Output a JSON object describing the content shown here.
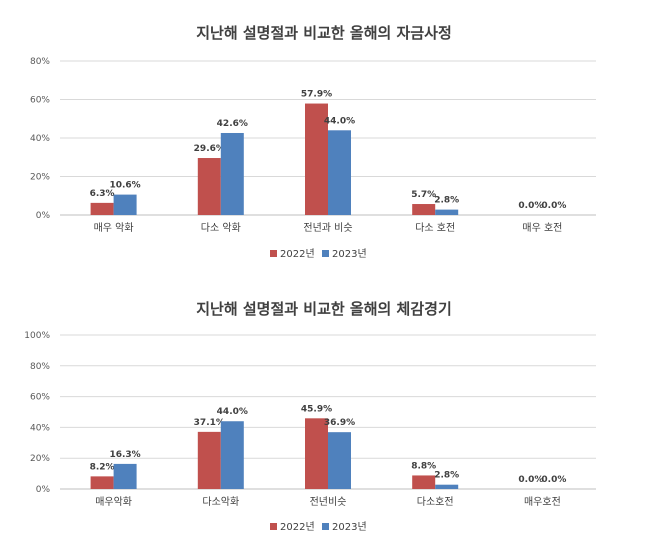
{
  "colors": {
    "s2022": "#C0504D",
    "s2023": "#4F81BD",
    "grid": "#D9D9D9",
    "axis": "#BFBFBF"
  },
  "chart_data": [
    {
      "type": "bar",
      "title": "지난해 설명절과 비교한 올해의 자금사정",
      "categories": [
        "매우 악화",
        "다소 악화",
        "전년과 비슷",
        "다소 호전",
        "매우 호전"
      ],
      "series": [
        {
          "name": "2022년",
          "values": [
            6.3,
            29.6,
            57.9,
            5.7,
            0.0
          ],
          "labels": [
            "6.3%",
            "29.6%",
            "57.9%",
            "5.7%",
            "0.0%"
          ]
        },
        {
          "name": "2023년",
          "values": [
            10.6,
            42.6,
            44.0,
            2.8,
            0.0
          ],
          "labels": [
            "10.6%",
            "42.6%",
            "44.0%",
            "2.8%",
            "0.0%"
          ]
        }
      ],
      "ylim": [
        0,
        80
      ],
      "yticks": [
        0,
        20,
        40,
        60,
        80
      ],
      "ytick_labels": [
        "0%",
        "20%",
        "40%",
        "60%",
        "80%"
      ],
      "grid": true,
      "legend": "bottom"
    },
    {
      "type": "bar",
      "title": "지난해 설명절과 비교한 올해의 체감경기",
      "categories": [
        "매우악화",
        "다소악화",
        "전년비슷",
        "다소호전",
        "매우호전"
      ],
      "series": [
        {
          "name": "2022년",
          "values": [
            8.2,
            37.1,
            45.9,
            8.8,
            0.0
          ],
          "labels": [
            "8.2%",
            "37.1%",
            "45.9%",
            "8.8%",
            "0.0%"
          ]
        },
        {
          "name": "2023년",
          "values": [
            16.3,
            44.0,
            36.9,
            2.8,
            0.0
          ],
          "labels": [
            "16.3%",
            "44.0%",
            "36.9%",
            "2.8%",
            "0.0%"
          ]
        }
      ],
      "ylim": [
        0,
        100
      ],
      "yticks": [
        0,
        20,
        40,
        60,
        80,
        100
      ],
      "ytick_labels": [
        "0%",
        "20%",
        "40%",
        "60%",
        "80%",
        "100%"
      ],
      "grid": true,
      "legend": "bottom"
    }
  ]
}
